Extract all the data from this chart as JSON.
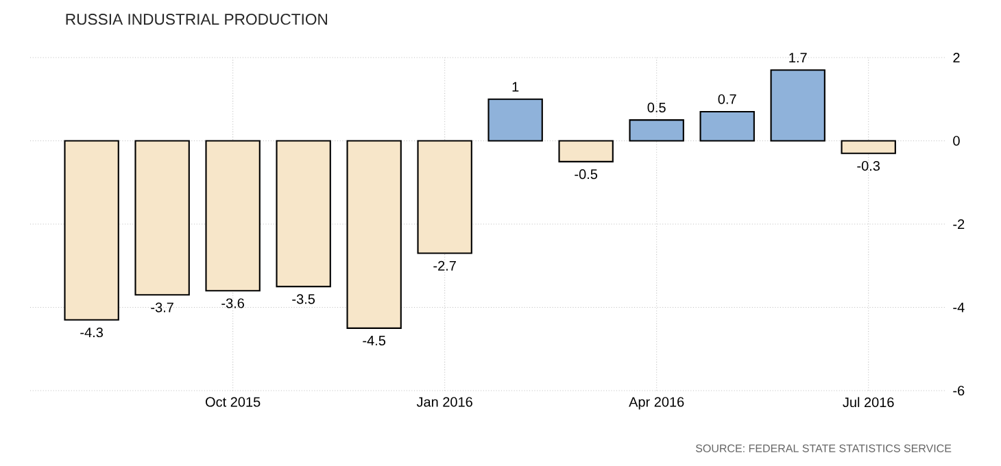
{
  "chart_data": {
    "type": "bar",
    "title": "RUSSIA INDUSTRIAL PRODUCTION",
    "categories": [
      null,
      null,
      "Oct 2015",
      null,
      null,
      "Jan 2016",
      null,
      null,
      "Apr 2016",
      null,
      null,
      "Jul 2016"
    ],
    "values": [
      -4.3,
      -3.7,
      -3.6,
      -3.5,
      -4.5,
      -2.7,
      1,
      -0.5,
      0.5,
      0.7,
      1.7,
      -0.3
    ],
    "colors": [
      "#f7e6c9",
      "#f7e6c9",
      "#f7e6c9",
      "#f7e6c9",
      "#f7e6c9",
      "#f7e6c9",
      "#8fb2da",
      "#f7e6c9",
      "#8fb2da",
      "#8fb2da",
      "#8fb2da",
      "#f7e6c9"
    ],
    "ylim": [
      -6,
      2
    ],
    "yticks": [
      -6,
      -4,
      -2,
      0,
      2
    ],
    "grid": true,
    "data_labels": true,
    "annotations": [
      "SOURCE: FEDERAL STATE STATISTICS SERVICE"
    ]
  }
}
